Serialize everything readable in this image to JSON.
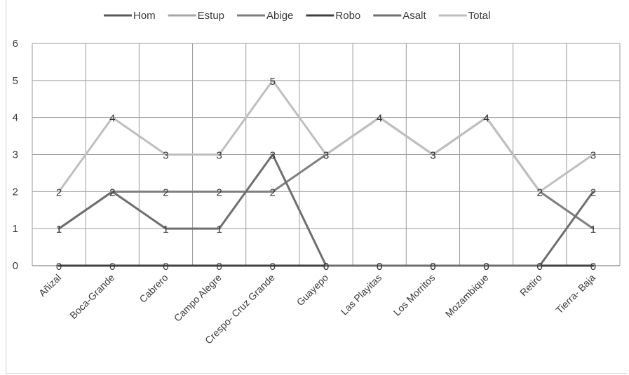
{
  "chart_data": {
    "type": "line",
    "categories": [
      "Añizal",
      "Boca-Grande",
      "Cabrero",
      "Campo Alegre",
      "Crespo- Cruz Grande",
      "Guayepo",
      "Las Playitas",
      "Los Morritos",
      "Mozambique",
      "Retiro",
      "Tierra- Baja"
    ],
    "ylim": [
      0,
      6
    ],
    "yticks": [
      0,
      1,
      2,
      3,
      4,
      5,
      6
    ],
    "grid": true,
    "legend_position": "top",
    "series": [
      {
        "name": "Hom",
        "color": "#595959",
        "values": [
          0,
          0,
          0,
          0,
          0,
          0,
          0,
          0,
          0,
          0,
          0
        ]
      },
      {
        "name": "Estup",
        "color": "#a6a6a6",
        "values": [
          0,
          0,
          0,
          0,
          0,
          0,
          0,
          0,
          0,
          0,
          0
        ]
      },
      {
        "name": "Abige",
        "color": "#7f7f7f",
        "values": [
          1,
          2,
          2,
          2,
          2,
          3,
          4,
          3,
          4,
          2,
          1
        ]
      },
      {
        "name": "Robo",
        "color": "#404040",
        "values": [
          0,
          0,
          0,
          0,
          0,
          0,
          0,
          0,
          0,
          0,
          0
        ]
      },
      {
        "name": "Asalt",
        "color": "#6e6e6e",
        "values": [
          1,
          2,
          1,
          1,
          3,
          0,
          0,
          0,
          0,
          0,
          2
        ]
      },
      {
        "name": "Total",
        "color": "#bfbfbf",
        "values": [
          2,
          4,
          3,
          3,
          5,
          3,
          4,
          3,
          4,
          2,
          3
        ]
      }
    ],
    "data_labels": [
      {
        "series": "Hom",
        "values": [
          0,
          0,
          0,
          0,
          0,
          0,
          0,
          0,
          0,
          0,
          0
        ]
      },
      {
        "series": "Abige",
        "values": [
          1,
          2,
          2,
          2,
          2,
          3,
          4,
          3,
          4,
          2,
          1
        ]
      },
      {
        "series": "Asalt",
        "values": [
          1,
          2,
          1,
          1,
          3,
          0,
          0,
          0,
          0,
          0,
          2
        ]
      },
      {
        "series": "Total",
        "values": [
          2,
          4,
          3,
          3,
          5,
          3,
          4,
          3,
          4,
          2,
          3
        ]
      }
    ]
  }
}
